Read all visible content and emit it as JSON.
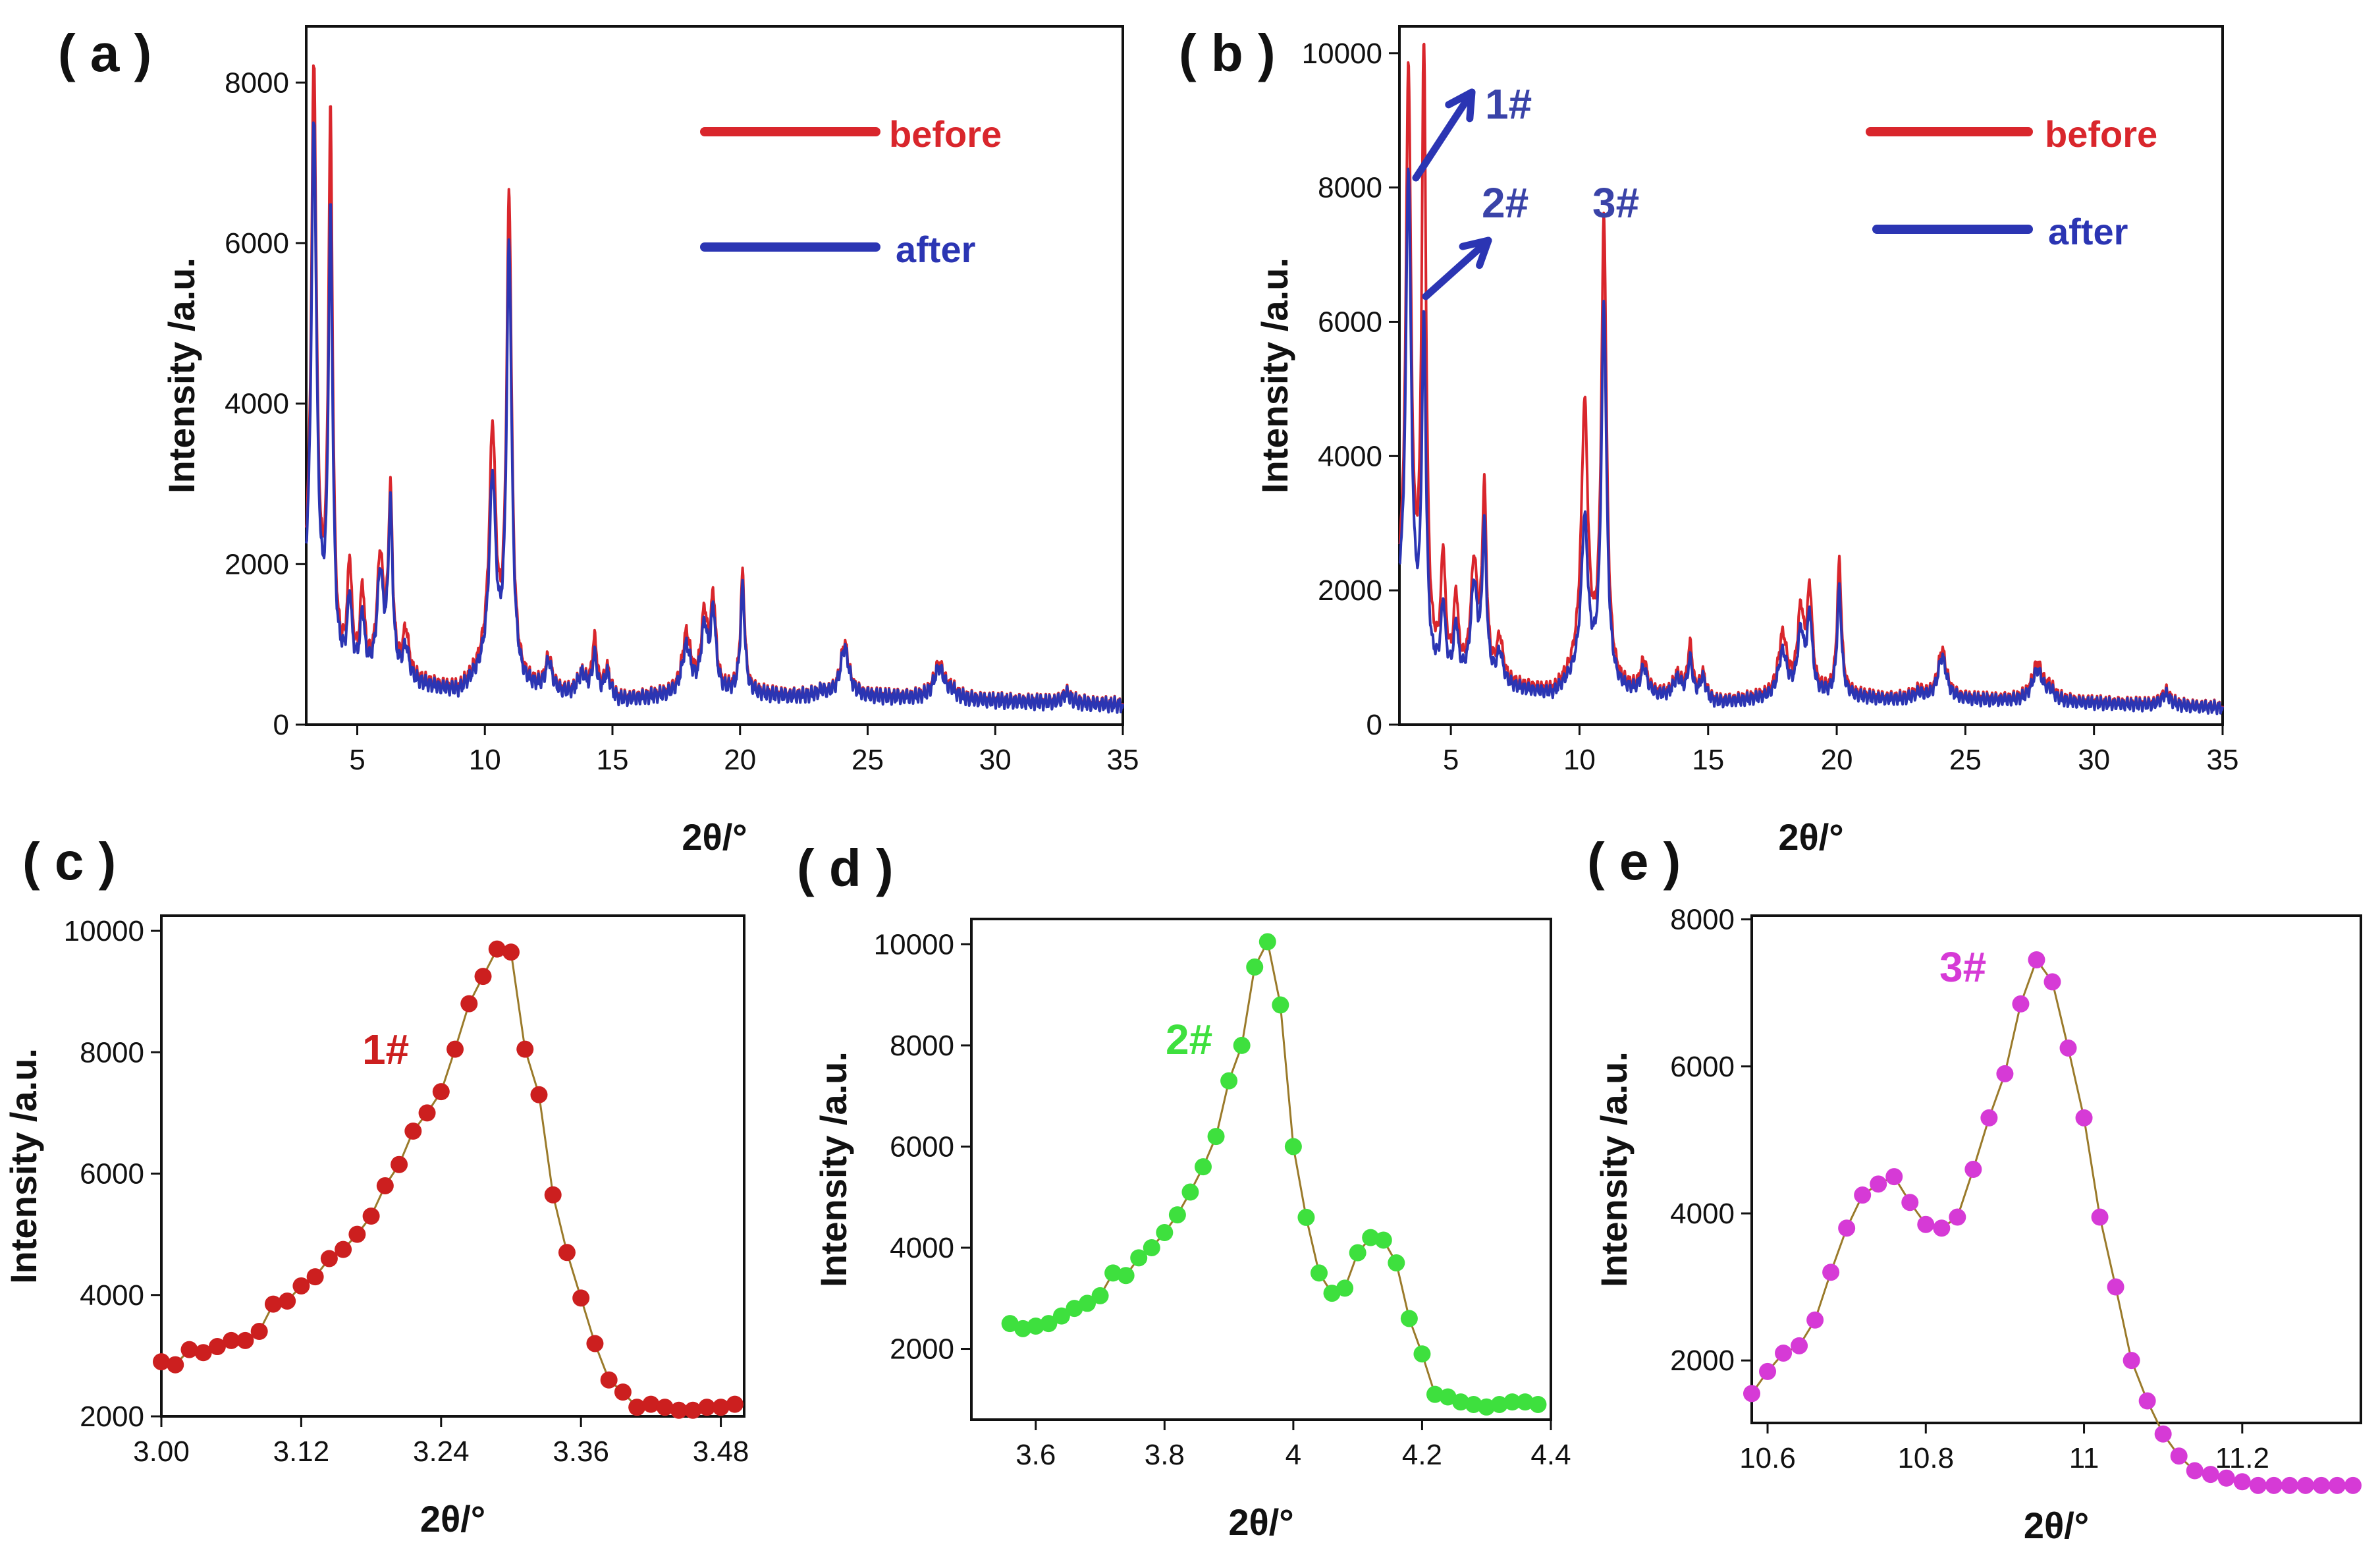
{
  "figure": {
    "panel_labels": [
      "( a )",
      "( b )",
      "( c )",
      "( d )",
      "( e )"
    ]
  },
  "chart_data": [
    {
      "id": "a",
      "type": "line",
      "title": "",
      "xlabel": "2θ/°",
      "ylabel": "Intensity /a.u.",
      "xlim": [
        3,
        35
      ],
      "ylim": [
        0,
        8700
      ],
      "xticks": [
        5,
        10,
        15,
        20,
        25,
        30,
        35
      ],
      "yticks": [
        0,
        2000,
        4000,
        6000,
        8000
      ],
      "legend": [
        {
          "label": "before",
          "color": "#d9262c"
        },
        {
          "label": "after",
          "color": "#2b35b3"
        }
      ],
      "series": [
        {
          "name": "before",
          "color": "#d9262c",
          "peaks": [
            [
              3.3,
              8200,
              0.12
            ],
            [
              3.95,
              7400,
              0.1
            ],
            [
              4.7,
              1900,
              0.1
            ],
            [
              5.2,
              1600,
              0.1
            ],
            [
              5.9,
              2000,
              0.15
            ],
            [
              6.3,
              2750,
              0.1
            ],
            [
              6.9,
              1100,
              0.15
            ],
            [
              8.7,
              400,
              0.2
            ],
            [
              10.3,
              3600,
              0.15
            ],
            [
              10.95,
              6500,
              0.12
            ],
            [
              12.5,
              800,
              0.15
            ],
            [
              13.8,
              600,
              0.2
            ],
            [
              14.3,
              1000,
              0.12
            ],
            [
              14.8,
              650,
              0.15
            ],
            [
              17.9,
              1100,
              0.2
            ],
            [
              18.6,
              1300,
              0.15
            ],
            [
              18.95,
              1500,
              0.12
            ],
            [
              20.1,
              1850,
              0.1
            ],
            [
              23.2,
              400,
              0.25
            ],
            [
              24.1,
              1000,
              0.2
            ],
            [
              27.8,
              750,
              0.25
            ],
            [
              28.3,
              400,
              0.2
            ],
            [
              32.8,
              400,
              0.2
            ]
          ],
          "baseline": [
            [
              3,
              1500
            ],
            [
              3.7,
              900
            ],
            [
              4.2,
              600
            ],
            [
              6.5,
              550
            ],
            [
              9,
              400
            ],
            [
              10,
              700
            ],
            [
              11.5,
              450
            ],
            [
              15,
              280
            ],
            [
              17,
              350
            ],
            [
              20,
              400
            ],
            [
              22,
              350
            ],
            [
              25,
              350
            ],
            [
              30,
              300
            ],
            [
              35,
              250
            ]
          ]
        },
        {
          "name": "after",
          "color": "#2b35b3",
          "peaks": [
            [
              3.3,
              7500,
              0.12
            ],
            [
              3.95,
              6200,
              0.1
            ],
            [
              4.7,
              1500,
              0.1
            ],
            [
              5.2,
              1300,
              0.1
            ],
            [
              5.9,
              1800,
              0.15
            ],
            [
              6.3,
              2600,
              0.1
            ],
            [
              6.9,
              900,
              0.15
            ],
            [
              8.7,
              380,
              0.2
            ],
            [
              10.3,
              3000,
              0.15
            ],
            [
              10.95,
              5900,
              0.12
            ],
            [
              12.5,
              750,
              0.15
            ],
            [
              13.8,
              600,
              0.2
            ],
            [
              14.3,
              800,
              0.12
            ],
            [
              14.8,
              600,
              0.15
            ],
            [
              17.9,
              950,
              0.2
            ],
            [
              18.6,
              1150,
              0.15
            ],
            [
              18.95,
              1350,
              0.12
            ],
            [
              20.1,
              1700,
              0.1
            ],
            [
              23.2,
              400,
              0.25
            ],
            [
              24.1,
              950,
              0.2
            ],
            [
              27.8,
              700,
              0.25
            ],
            [
              28.3,
              380,
              0.2
            ],
            [
              32.8,
              380,
              0.2
            ]
          ],
          "baseline": [
            [
              3,
              1400
            ],
            [
              3.7,
              850
            ],
            [
              4.2,
              580
            ],
            [
              6.5,
              520
            ],
            [
              9,
              380
            ],
            [
              10,
              650
            ],
            [
              11.5,
              430
            ],
            [
              15,
              270
            ],
            [
              17,
              340
            ],
            [
              20,
              380
            ],
            [
              22,
              340
            ],
            [
              25,
              340
            ],
            [
              30,
              290
            ],
            [
              35,
              240
            ]
          ]
        }
      ]
    },
    {
      "id": "b",
      "type": "line",
      "title": "",
      "xlabel": "2θ/°",
      "ylabel": "Intensity /a.u.",
      "xlim": [
        3,
        35
      ],
      "ylim": [
        0,
        10400
      ],
      "xticks": [
        5,
        10,
        15,
        20,
        25,
        30,
        35
      ],
      "yticks": [
        0,
        2000,
        4000,
        6000,
        8000,
        10000
      ],
      "legend": [
        {
          "label": "before",
          "color": "#d9262c"
        },
        {
          "label": "after",
          "color": "#2b35b3"
        }
      ],
      "annotations": [
        {
          "text": "1#",
          "x": 4.1,
          "y": 9700
        },
        {
          "text": "2#",
          "x": 6.3,
          "y": 7900
        },
        {
          "text": "3#",
          "x": 10.8,
          "y": 7900
        }
      ],
      "series": [
        {
          "name": "before",
          "color": "#d9262c",
          "peaks": [
            [
              3.35,
              9700,
              0.12
            ],
            [
              3.95,
              10050,
              0.1
            ],
            [
              4.7,
              2400,
              0.1
            ],
            [
              5.2,
              1800,
              0.1
            ],
            [
              5.9,
              2300,
              0.15
            ],
            [
              6.3,
              3350,
              0.1
            ],
            [
              6.9,
              1200,
              0.15
            ],
            [
              8.7,
              450,
              0.2
            ],
            [
              10.2,
              4700,
              0.15
            ],
            [
              10.95,
              7450,
              0.12
            ],
            [
              12.5,
              900,
              0.15
            ],
            [
              13.8,
              700,
              0.2
            ],
            [
              14.3,
              1100,
              0.12
            ],
            [
              14.8,
              700,
              0.15
            ],
            [
              17.9,
              1300,
              0.2
            ],
            [
              18.6,
              1600,
              0.15
            ],
            [
              18.95,
              1900,
              0.12
            ],
            [
              20.1,
              2400,
              0.1
            ],
            [
              23.2,
              500,
              0.25
            ],
            [
              24.1,
              1100,
              0.2
            ],
            [
              27.8,
              900,
              0.25
            ],
            [
              28.3,
              500,
              0.2
            ],
            [
              32.8,
              500,
              0.2
            ]
          ],
          "baseline": [
            [
              3,
              1800
            ],
            [
              3.7,
              1000
            ],
            [
              4.2,
              700
            ],
            [
              6.5,
              600
            ],
            [
              9,
              450
            ],
            [
              10,
              800
            ],
            [
              11.5,
              500
            ],
            [
              15,
              300
            ],
            [
              17,
              380
            ],
            [
              20,
              450
            ],
            [
              22,
              380
            ],
            [
              25,
              380
            ],
            [
              30,
              330
            ],
            [
              35,
              260
            ]
          ]
        },
        {
          "name": "after",
          "color": "#2b35b3",
          "peaks": [
            [
              3.35,
              8300,
              0.12
            ],
            [
              3.95,
              5800,
              0.1
            ],
            [
              4.7,
              1700,
              0.1
            ],
            [
              5.2,
              1400,
              0.1
            ],
            [
              5.9,
              2000,
              0.15
            ],
            [
              6.3,
              2800,
              0.1
            ],
            [
              6.9,
              1000,
              0.15
            ],
            [
              8.7,
              420,
              0.2
            ],
            [
              10.2,
              3000,
              0.15
            ],
            [
              10.95,
              6200,
              0.12
            ],
            [
              12.5,
              800,
              0.15
            ],
            [
              13.8,
              650,
              0.2
            ],
            [
              14.3,
              900,
              0.12
            ],
            [
              14.8,
              650,
              0.15
            ],
            [
              17.9,
              1050,
              0.2
            ],
            [
              18.6,
              1300,
              0.15
            ],
            [
              18.95,
              1550,
              0.12
            ],
            [
              20.1,
              2000,
              0.1
            ],
            [
              23.2,
              450,
              0.25
            ],
            [
              24.1,
              1000,
              0.2
            ],
            [
              27.8,
              800,
              0.25
            ],
            [
              28.3,
              450,
              0.2
            ],
            [
              32.8,
              450,
              0.2
            ]
          ],
          "baseline": [
            [
              3,
              1700
            ],
            [
              3.7,
              950
            ],
            [
              4.2,
              650
            ],
            [
              6.5,
              560
            ],
            [
              9,
              420
            ],
            [
              10,
              750
            ],
            [
              11.5,
              470
            ],
            [
              15,
              290
            ],
            [
              17,
              360
            ],
            [
              20,
              420
            ],
            [
              22,
              360
            ],
            [
              25,
              360
            ],
            [
              30,
              310
            ],
            [
              35,
              250
            ]
          ]
        }
      ]
    },
    {
      "id": "c",
      "type": "scatter",
      "title": "1#",
      "xlabel": "2θ/°",
      "ylabel": "Intensity /a.u.",
      "xlim": [
        3.0,
        3.5
      ],
      "ylim": [
        2000,
        10250
      ],
      "xticks": [
        3.0,
        3.12,
        3.24,
        3.36,
        3.48
      ],
      "xtick_labels": [
        "3.00",
        "3.12",
        "3.24",
        "3.36",
        "3.48"
      ],
      "yticks": [
        2000,
        4000,
        6000,
        8000,
        10000
      ],
      "color": "#cc1f1f",
      "line_color": "#9a7a2a",
      "x": [
        3.0,
        3.012,
        3.024,
        3.036,
        3.048,
        3.06,
        3.072,
        3.084,
        3.096,
        3.108,
        3.12,
        3.132,
        3.144,
        3.156,
        3.168,
        3.18,
        3.192,
        3.204,
        3.216,
        3.228,
        3.24,
        3.252,
        3.264,
        3.276,
        3.288,
        3.3,
        3.312,
        3.324,
        3.336,
        3.348,
        3.36,
        3.372,
        3.384,
        3.396,
        3.408,
        3.42,
        3.432,
        3.444,
        3.456,
        3.468,
        3.48,
        3.492
      ],
      "y": [
        2900,
        2850,
        3100,
        3050,
        3150,
        3250,
        3250,
        3400,
        3850,
        3900,
        4150,
        4300,
        4600,
        4750,
        5000,
        5300,
        5800,
        6150,
        6700,
        7000,
        7350,
        8050,
        8800,
        9250,
        9700,
        9650,
        8050,
        7300,
        5650,
        4700,
        3950,
        3200,
        2600,
        2400,
        2150,
        2200,
        2150,
        2100,
        2100,
        2150,
        2150,
        2200
      ]
    },
    {
      "id": "d",
      "type": "scatter",
      "title": "2#",
      "xlabel": "2θ/°",
      "ylabel": "Intensity /a.u.",
      "xlim": [
        3.5,
        4.4
      ],
      "ylim": [
        600,
        10500
      ],
      "xticks": [
        3.6,
        3.8,
        4.0,
        4.2,
        4.4
      ],
      "yticks": [
        2000,
        4000,
        6000,
        8000,
        10000
      ],
      "color": "#3ee03e",
      "line_color": "#9a7a2a",
      "x": [
        3.56,
        3.58,
        3.6,
        3.62,
        3.64,
        3.66,
        3.68,
        3.7,
        3.72,
        3.74,
        3.76,
        3.78,
        3.8,
        3.82,
        3.84,
        3.86,
        3.88,
        3.9,
        3.92,
        3.94,
        3.96,
        3.98,
        4.0,
        4.02,
        4.04,
        4.06,
        4.08,
        4.1,
        4.12,
        4.14,
        4.16,
        4.18,
        4.2,
        4.22,
        4.24,
        4.26,
        4.28,
        4.3,
        4.32,
        4.34,
        4.36,
        4.38
      ],
      "y": [
        2500,
        2400,
        2450,
        2500,
        2650,
        2800,
        2900,
        3050,
        3500,
        3450,
        3800,
        4000,
        4300,
        4650,
        5100,
        5600,
        6200,
        7300,
        8000,
        9550,
        10050,
        8800,
        6000,
        4600,
        3500,
        3100,
        3200,
        3900,
        4200,
        4150,
        3700,
        2600,
        1900,
        1100,
        1050,
        950,
        900,
        850,
        900,
        950,
        950,
        900
      ]
    },
    {
      "id": "e",
      "type": "scatter",
      "title": "3#",
      "xlabel": "2θ/°",
      "ylabel": "Intensity /a.u.",
      "xlim": [
        10.58,
        11.35
      ],
      "ylim": [
        1150,
        8050
      ],
      "xticks": [
        10.6,
        10.8,
        11.0,
        11.2
      ],
      "yticks": [
        2000,
        4000,
        6000,
        8000
      ],
      "color": "#d63ad6",
      "line_color": "#9a7a2a",
      "x": [
        10.58,
        10.6,
        10.62,
        10.64,
        10.66,
        10.68,
        10.7,
        10.72,
        10.74,
        10.76,
        10.78,
        10.8,
        10.82,
        10.84,
        10.86,
        10.88,
        10.9,
        10.92,
        10.94,
        10.96,
        10.98,
        11.0,
        11.02,
        11.04,
        11.06,
        11.08,
        11.1,
        11.12,
        11.14,
        11.16,
        11.18,
        11.2,
        11.22,
        11.24,
        11.26,
        11.28,
        11.3,
        11.32,
        11.34
      ],
      "y": [
        1550,
        1850,
        2100,
        2200,
        2550,
        3200,
        3800,
        4250,
        4400,
        4500,
        4150,
        3850,
        3800,
        3950,
        4600,
        5300,
        5900,
        6850,
        7450,
        7150,
        6250,
        5300,
        3950,
        3000,
        2000,
        1450,
        1000,
        700,
        500,
        450,
        400,
        350,
        300,
        300,
        300,
        300,
        300,
        300,
        300
      ]
    }
  ]
}
